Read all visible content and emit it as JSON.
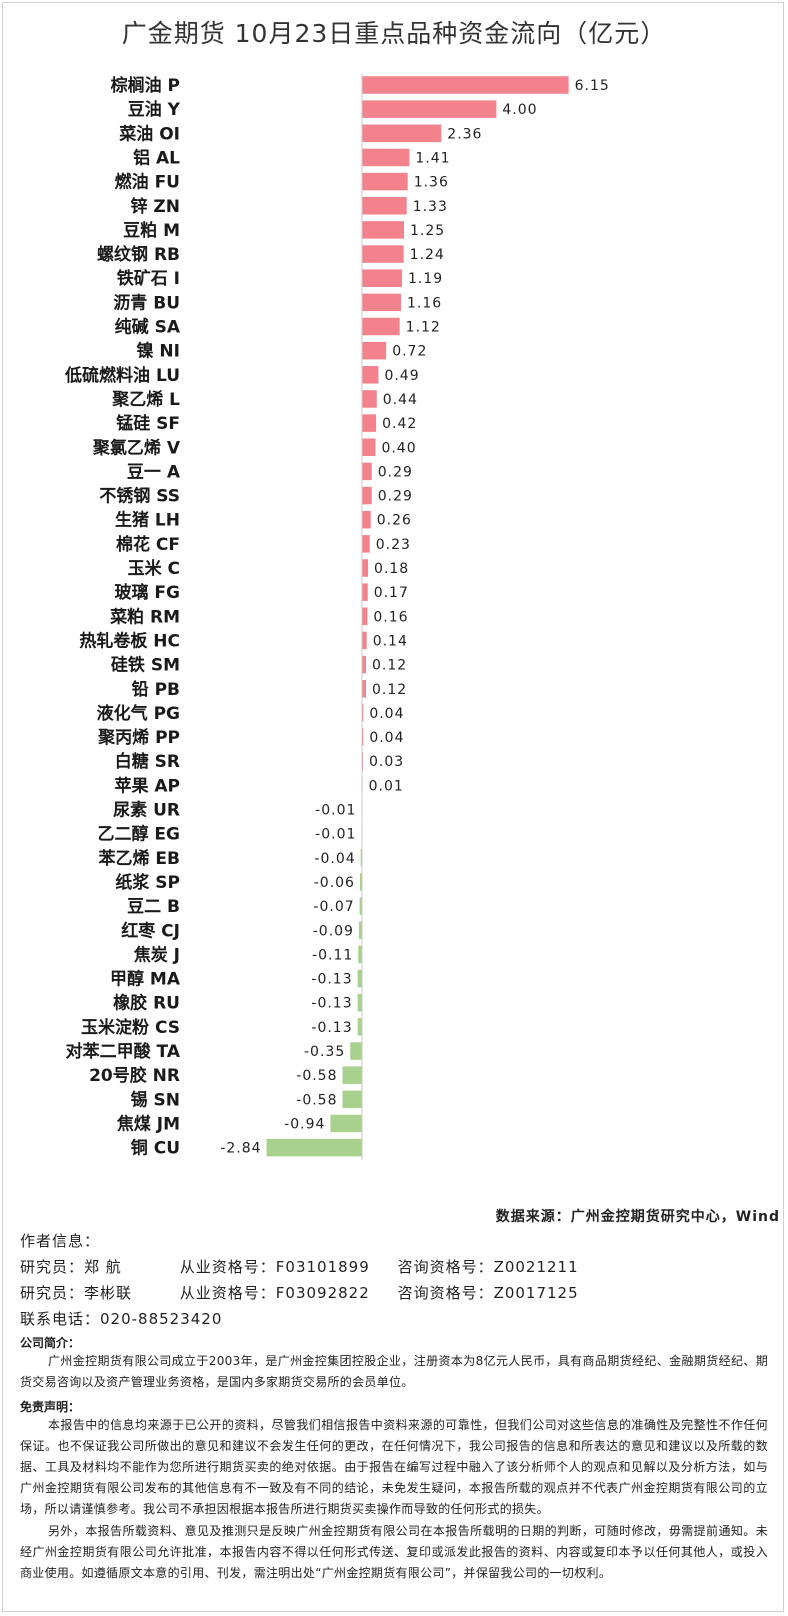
{
  "title": "广金期货 10月23日重点品种资金流向（亿元）",
  "colors": {
    "positive": "#f4828c",
    "negative": "#a9d18e",
    "axis": "#c8c8c8"
  },
  "chart_data": {
    "type": "bar",
    "orientation": "horizontal",
    "title": "广金期货 10月23日重点品种资金流向（亿元）",
    "categories": [
      "棕榈油 P",
      "豆油 Y",
      "菜油 OI",
      "铝 AL",
      "燃油 FU",
      "锌 ZN",
      "豆粕 M",
      "螺纹钢 RB",
      "铁矿石 I",
      "沥青 BU",
      "纯碱 SA",
      "镍 NI",
      "低硫燃料油 LU",
      "聚乙烯 L",
      "锰硅 SF",
      "聚氯乙烯 V",
      "豆一 A",
      "不锈钢 SS",
      "生猪 LH",
      "棉花 CF",
      "玉米 C",
      "玻璃 FG",
      "菜粕 RM",
      "热轧卷板 HC",
      "硅铁 SM",
      "铅 PB",
      "液化气 PG",
      "聚丙烯 PP",
      "白糖 SR",
      "苹果 AP",
      "尿素 UR",
      "乙二醇 EG",
      "苯乙烯 EB",
      "纸浆 SP",
      "豆二 B",
      "红枣 CJ",
      "焦炭 J",
      "甲醇 MA",
      "橡胶 RU",
      "玉米淀粉 CS",
      "对苯二甲酸 TA",
      "20号胶 NR",
      "锡 SN",
      "焦煤 JM",
      "铜 CU"
    ],
    "values": [
      6.15,
      4.0,
      2.36,
      1.41,
      1.36,
      1.33,
      1.25,
      1.24,
      1.19,
      1.16,
      1.12,
      0.72,
      0.49,
      0.44,
      0.42,
      0.4,
      0.29,
      0.29,
      0.26,
      0.23,
      0.18,
      0.17,
      0.16,
      0.14,
      0.12,
      0.12,
      0.04,
      0.04,
      0.03,
      0.01,
      -0.01,
      -0.01,
      -0.04,
      -0.06,
      -0.07,
      -0.09,
      -0.11,
      -0.13,
      -0.13,
      -0.13,
      -0.35,
      -0.58,
      -0.58,
      -0.94,
      -2.84
    ],
    "value_labels": [
      "6.15",
      "4.00",
      "2.36",
      "1.41",
      "1.36",
      "1.33",
      "1.25",
      "1.24",
      "1.19",
      "1.16",
      "1.12",
      "0.72",
      "0.49",
      "0.44",
      "0.42",
      "0.40",
      "0.29",
      "0.29",
      "0.26",
      "0.23",
      "0.18",
      "0.17",
      "0.16",
      "0.14",
      "0.12",
      "0.12",
      "0.04",
      "0.04",
      "0.03",
      "0.01",
      "-0.01",
      "-0.01",
      "-0.04",
      "-0.06",
      "-0.07",
      "-0.09",
      "-0.11",
      "-0.13",
      "-0.13",
      "-0.13",
      "-0.35",
      "-0.58",
      "-0.58",
      "-0.94",
      "-2.84"
    ],
    "xlim": [
      -2.84,
      6.15
    ],
    "grid": false,
    "legend": "none"
  },
  "source": "数据来源：广州金控期货研究中心，Wind",
  "author": {
    "heading": "作者信息：",
    "researchers": [
      {
        "role": "研究员：郑 航",
        "license_label": "从业资格号：F03101899",
        "consult_label": "咨询资格号：Z0021211"
      },
      {
        "role": "研究员：李彬联",
        "license_label": "从业资格号：F03092822",
        "consult_label": "咨询资格号：Z0017125"
      }
    ],
    "phone": "联系电话：020-88523420"
  },
  "company": {
    "heading": "公司简介：",
    "text": "广州金控期货有限公司成立于2003年，是广州金控集团控股企业，注册资本为8亿元人民币，具有商品期货经纪、金融期货经纪、期货交易咨询以及资产管理业务资格，是国内多家期货交易所的会员单位。"
  },
  "disclaimer": {
    "heading": "免责声明：",
    "para1": "本报告中的信息均来源于已公开的资料，尽管我们相信报告中资料来源的可靠性，但我们公司对这些信息的准确性及完整性不作任何保证。也不保证我公司所做出的意见和建议不会发生任何的更改，在任何情况下，我公司报告的信息和所表达的意见和建议以及所载的数据、工具及材料均不能作为您所进行期货买卖的绝对依据。由于报告在编写过程中融入了该分析师个人的观点和见解以及分析方法，如与广州金控期货有限公司发布的其他信息有不一致及有不同的结论，未免发生疑问，本报告所载的观点并不代表广州金控期货有限公司的立场，所以请谨慎参考。我公司不承担因根据本报告所进行期货买卖操作而导致的任何形式的损失。",
    "para2": "另外，本报告所载资料、意见及推测只是反映广州金控期货有限公司在本报告所载明的日期的判断，可随时修改，毋需提前通知。未经广州金控期货有限公司允许批准，本报告内容不得以任何形式传送、复印或派发此报告的资料、内容或复印本予以任何其他人，或投入商业使用。如遵循原文本意的引用、刊发，需注明出处“广州金控期货有限公司”，并保留我公司的一切权利。"
  }
}
